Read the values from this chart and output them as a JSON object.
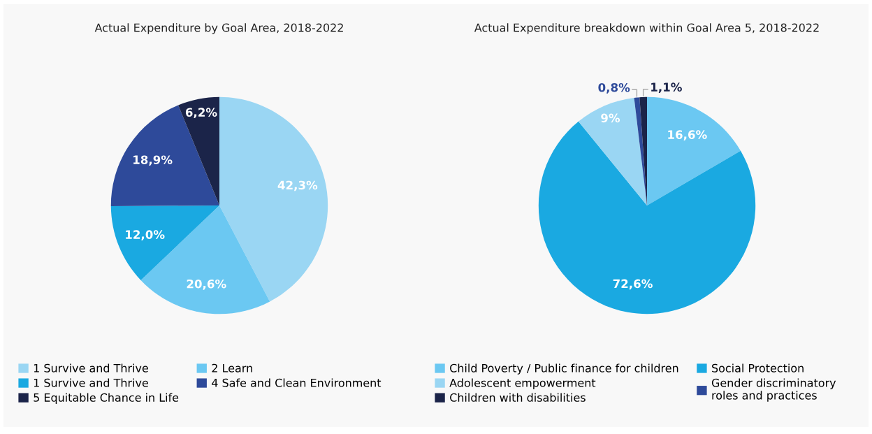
{
  "chart_data": [
    {
      "type": "pie",
      "title": "Actual Expenditure by Goal Area, 2018-2022",
      "categories": [
        "1 Survive and Thrive",
        "2 Learn",
        "1 Survive and Thrive",
        "4 Safe and Clean Environment",
        "5 Equitable Chance in Life"
      ],
      "values": [
        42.3,
        20.6,
        12.0,
        18.9,
        6.2
      ],
      "colors": [
        "#9ad6f3",
        "#6bc8f2",
        "#1aa9e1",
        "#2e4a9a",
        "#1b2449"
      ],
      "value_labels": [
        "42,3%",
        "20,6%",
        "12,0%",
        "18,9%",
        "6,2%"
      ],
      "legend": "bottom"
    },
    {
      "type": "pie",
      "title": "Actual Expenditure breakdown within Goal Area 5, 2018-2022",
      "categories": [
        "Child Poverty / Public finance for children",
        "Social Protection",
        "Adolescent empowerment",
        "Gender discriminatory\nroles and practices",
        "Children with disabilities"
      ],
      "values": [
        16.6,
        72.6,
        9,
        0.8,
        1.1
      ],
      "colors": [
        "#6bc8f2",
        "#1aa9e1",
        "#9ad6f3",
        "#2e4a9a",
        "#1b2449"
      ],
      "value_labels": [
        "16,6%",
        "72,6%",
        "9%",
        "0,8%",
        "1,1%"
      ],
      "legend": "bottom"
    }
  ]
}
